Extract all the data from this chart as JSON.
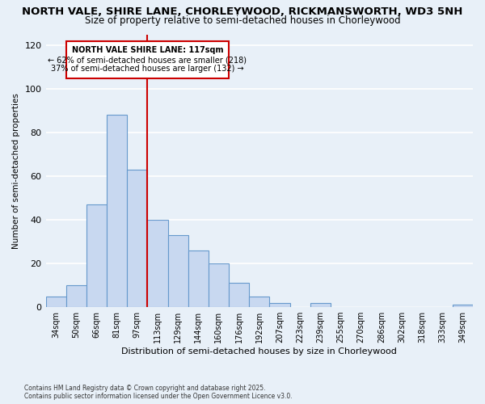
{
  "title_line1": "NORTH VALE, SHIRE LANE, CHORLEYWOOD, RICKMANSWORTH, WD3 5NH",
  "title_line2": "Size of property relative to semi-detached houses in Chorleywood",
  "xlabel": "Distribution of semi-detached houses by size in Chorleywood",
  "ylabel": "Number of semi-detached properties",
  "categories": [
    "34sqm",
    "50sqm",
    "66sqm",
    "81sqm",
    "97sqm",
    "113sqm",
    "129sqm",
    "144sqm",
    "160sqm",
    "176sqm",
    "192sqm",
    "207sqm",
    "223sqm",
    "239sqm",
    "255sqm",
    "270sqm",
    "286sqm",
    "302sqm",
    "318sqm",
    "333sqm",
    "349sqm"
  ],
  "values": [
    5,
    10,
    47,
    88,
    63,
    40,
    33,
    26,
    20,
    11,
    5,
    2,
    0,
    2,
    0,
    0,
    0,
    0,
    0,
    0,
    1
  ],
  "bar_color": "#c8d8f0",
  "bar_edge_color": "#6699cc",
  "vline_index": 5,
  "annotation_text_line1": "NORTH VALE SHIRE LANE: 117sqm",
  "annotation_text_line2": "← 62% of semi-detached houses are smaller (218)",
  "annotation_text_line3": "37% of semi-detached houses are larger (132) →",
  "box_color": "#ffffff",
  "box_edge_color": "#cc0000",
  "vline_color": "#cc0000",
  "footer_line1": "Contains HM Land Registry data © Crown copyright and database right 2025.",
  "footer_line2": "Contains public sector information licensed under the Open Government Licence v3.0.",
  "ylim": [
    0,
    125
  ],
  "yticks": [
    0,
    20,
    40,
    60,
    80,
    100,
    120
  ],
  "bg_color": "#e8f0f8",
  "grid_color": "#ffffff",
  "title_fontsize": 9.5,
  "subtitle_fontsize": 8.5
}
